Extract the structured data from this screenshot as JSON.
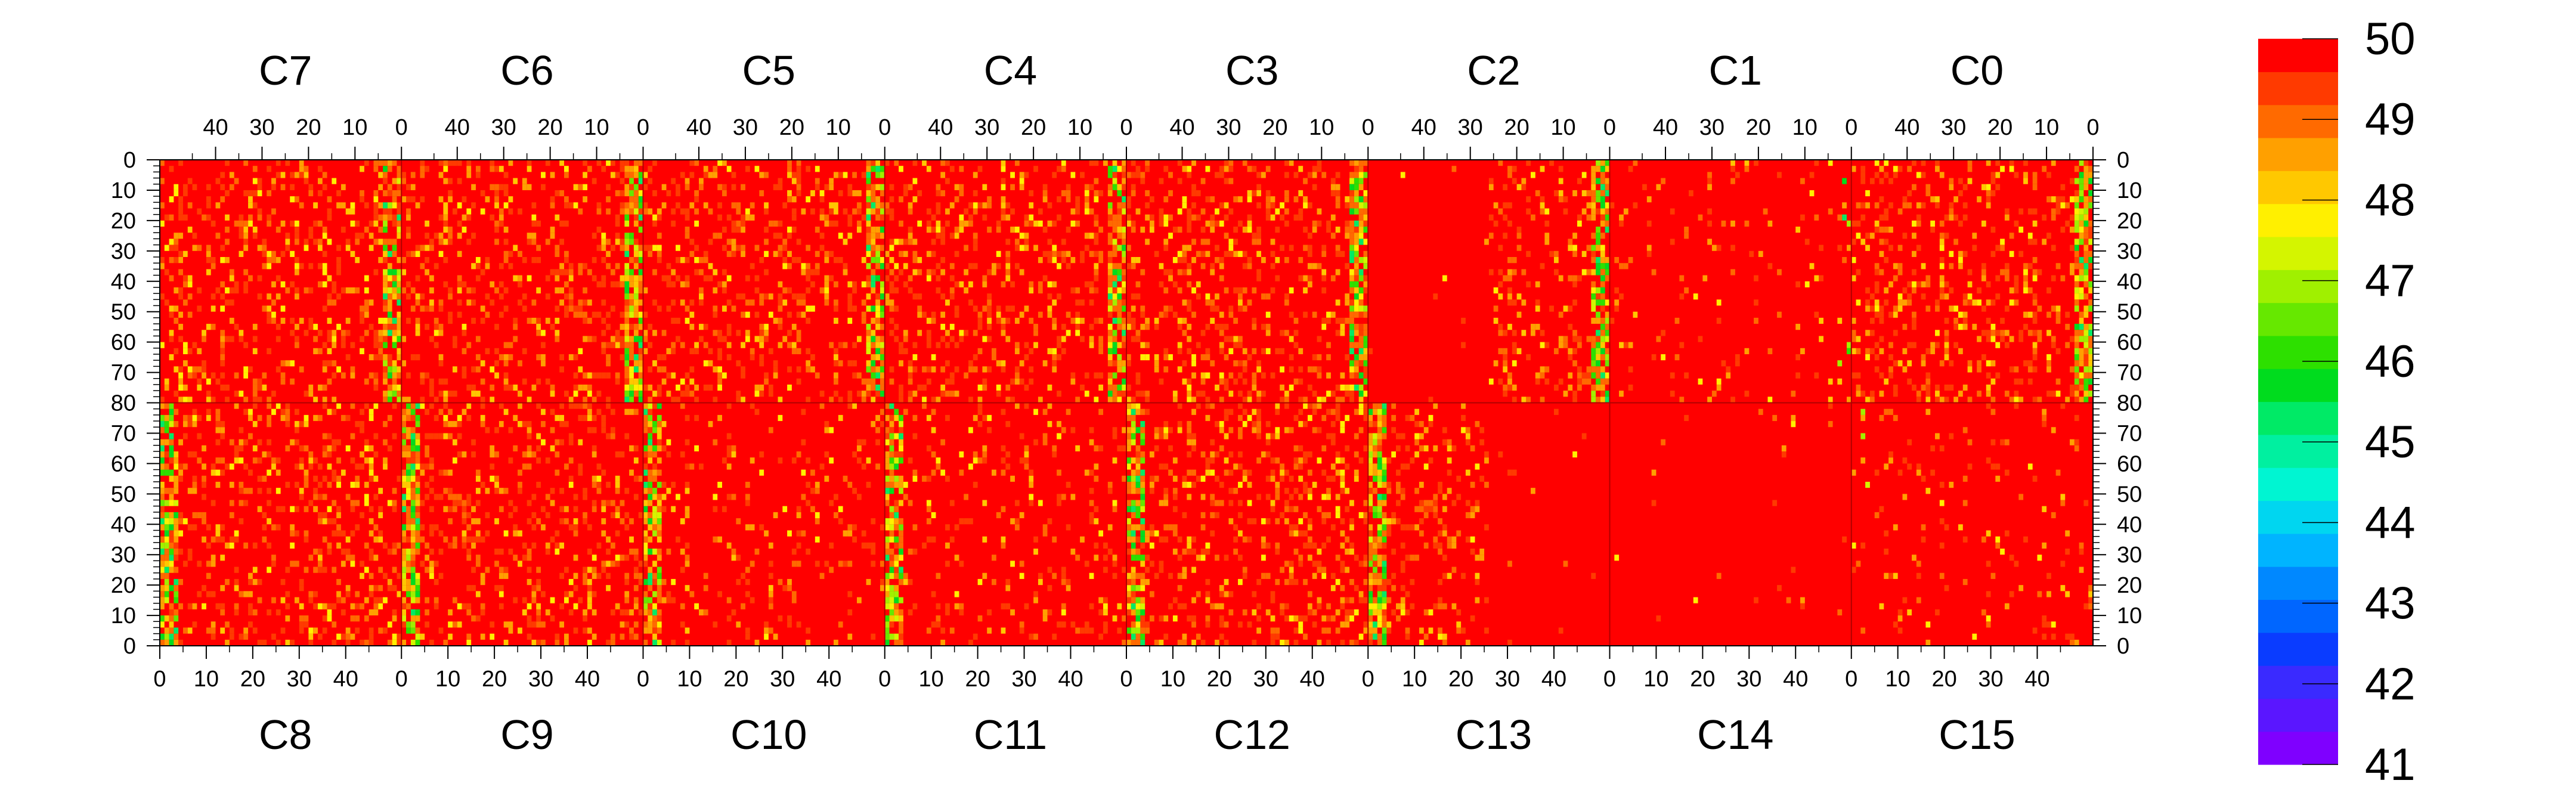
{
  "chart_data": {
    "type": "heatmap",
    "title": "",
    "xlabel": "",
    "ylabel": "",
    "description_note": "",
    "top_chips": [
      "C7",
      "C6",
      "C5",
      "C4",
      "C3",
      "C2",
      "C1",
      "C0"
    ],
    "bottom_chips": [
      "C8",
      "C9",
      "C10",
      "C11",
      "C12",
      "C13",
      "C14",
      "C15"
    ],
    "x_range": [
      0,
      52
    ],
    "y_range": [
      0,
      80
    ],
    "top_x_ticks": [
      "40",
      "30",
      "20",
      "10",
      "0"
    ],
    "bottom_x_ticks": [
      "0",
      "10",
      "20",
      "30",
      "40"
    ],
    "y_ticks_top_half": [
      "0",
      "10",
      "20",
      "30",
      "40",
      "50",
      "60",
      "70",
      "80"
    ],
    "y_ticks_bottom_half": [
      "70",
      "60",
      "50",
      "40",
      "30",
      "20",
      "10",
      "0"
    ],
    "z_range": [
      41,
      50
    ],
    "colorbar_labels": [
      "50",
      "49",
      "48",
      "47",
      "46",
      "45",
      "44",
      "43",
      "42",
      "41"
    ],
    "palette": [
      "#7f00ff",
      "#5a16ff",
      "#3a2aff",
      "#0a3cff",
      "#0066ff",
      "#0088ff",
      "#00b4ff",
      "#00d6f0",
      "#00f5d2",
      "#00f0a0",
      "#00ea66",
      "#00dc1e",
      "#2de000",
      "#66e800",
      "#a0f000",
      "#d4f500",
      "#fff000",
      "#ffc800",
      "#ffa000",
      "#ff6a00",
      "#ff3a00",
      "#ff0000"
    ],
    "chip_modes": [
      {
        "chip": "C7",
        "mode": "noisy"
      },
      {
        "chip": "C6",
        "mode": "noisy"
      },
      {
        "chip": "C5",
        "mode": "noisy"
      },
      {
        "chip": "C4",
        "mode": "noisy"
      },
      {
        "chip": "C3",
        "mode": "noisy"
      },
      {
        "chip": "C2",
        "mode": "half_clean"
      },
      {
        "chip": "C1",
        "mode": "mostly_clean"
      },
      {
        "chip": "C0",
        "mode": "noisy"
      },
      {
        "chip": "C8",
        "mode": "noisy"
      },
      {
        "chip": "C9",
        "mode": "noisy"
      },
      {
        "chip": "C10",
        "mode": "medium"
      },
      {
        "chip": "C11",
        "mode": "medium"
      },
      {
        "chip": "C12",
        "mode": "noisy"
      },
      {
        "chip": "C13",
        "mode": "half_clean"
      },
      {
        "chip": "C14",
        "mode": "clean"
      },
      {
        "chip": "C15",
        "mode": "mostly_clean"
      }
    ],
    "series": []
  }
}
